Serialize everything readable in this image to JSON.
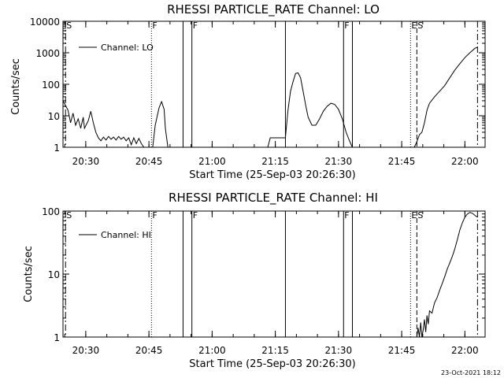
{
  "footer_timestamp": "23-Oct-2021 18:12",
  "colors": {
    "background": "#ffffff",
    "ink": "#000000"
  },
  "chart_data": [
    {
      "type": "line",
      "title": "RHESSI PARTICLE_RATE Channel: LO",
      "xlabel": "Start Time (25-Sep-03 20:26:30)",
      "ylabel": "Counts/sec",
      "yscale": "log",
      "ylim": [
        1,
        10000
      ],
      "xlim": [
        20.41,
        22.08
      ],
      "xticks": [
        {
          "v": 20.5,
          "label": "20:30"
        },
        {
          "v": 20.75,
          "label": "20:45"
        },
        {
          "v": 21.0,
          "label": "21:00"
        },
        {
          "v": 21.25,
          "label": "21:15"
        },
        {
          "v": 21.5,
          "label": "21:30"
        },
        {
          "v": 21.75,
          "label": "21:45"
        },
        {
          "v": 22.0,
          "label": "22:00"
        }
      ],
      "yticks": [
        {
          "v": 1,
          "label": "1"
        },
        {
          "v": 10,
          "label": "10"
        },
        {
          "v": 100,
          "label": "100"
        },
        {
          "v": 1000,
          "label": "1000"
        },
        {
          "v": 10000,
          "label": "10000"
        }
      ],
      "legend": {
        "position": "top-left",
        "entries": [
          "Channel: LO"
        ]
      },
      "markers": [
        {
          "t": 20.42,
          "style": "dashdot",
          "label": "S"
        },
        {
          "t": 20.76,
          "style": "dotted",
          "label": "F"
        },
        {
          "t": 20.885,
          "style": "solid",
          "label": ""
        },
        {
          "t": 20.92,
          "style": "solid",
          "label": "F"
        },
        {
          "t": 21.29,
          "style": "solid",
          "label": ""
        },
        {
          "t": 21.52,
          "style": "solid",
          "label": "F"
        },
        {
          "t": 21.555,
          "style": "solid",
          "label": ""
        },
        {
          "t": 21.785,
          "style": "dotted",
          "label": "E"
        },
        {
          "t": 21.81,
          "style": "dashed",
          "label": "S"
        },
        {
          "t": 22.05,
          "style": "dashdot",
          "label": ""
        }
      ],
      "series": [
        {
          "name": "Channel: LO",
          "segments": [
            [
              [
                20.41,
                30
              ],
              [
                20.43,
                15
              ],
              [
                20.44,
                6
              ],
              [
                20.45,
                12
              ],
              [
                20.46,
                5
              ],
              [
                20.47,
                8
              ],
              [
                20.48,
                4
              ],
              [
                20.49,
                9
              ],
              [
                20.495,
                4
              ],
              [
                20.51,
                7
              ],
              [
                20.52,
                14
              ],
              [
                20.53,
                6
              ],
              [
                20.54,
                3
              ],
              [
                20.55,
                2
              ],
              [
                20.56,
                1.6
              ],
              [
                20.57,
                2.1
              ],
              [
                20.58,
                1.7
              ],
              [
                20.59,
                2.2
              ],
              [
                20.6,
                1.8
              ],
              [
                20.61,
                2.1
              ],
              [
                20.62,
                1.7
              ],
              [
                20.63,
                2.2
              ],
              [
                20.64,
                1.8
              ],
              [
                20.65,
                2.1
              ],
              [
                20.66,
                1.6
              ],
              [
                20.67,
                2.0
              ],
              [
                20.68,
                1.2
              ],
              [
                20.69,
                2.0
              ],
              [
                20.7,
                1.3
              ],
              [
                20.71,
                1.9
              ],
              [
                20.72,
                1.3
              ],
              [
                20.73,
                1.0
              ]
            ],
            [
              [
                20.765,
                1.0
              ],
              [
                20.775,
                5
              ],
              [
                20.79,
                18
              ],
              [
                20.8,
                28
              ],
              [
                20.81,
                16
              ],
              [
                20.815,
                4
              ],
              [
                20.825,
                1.0
              ]
            ],
            [
              [
                21.22,
                1.0
              ],
              [
                21.23,
                2
              ],
              [
                21.25,
                2
              ],
              [
                21.27,
                2
              ],
              [
                21.29,
                2
              ],
              [
                21.3,
                15
              ],
              [
                21.31,
                60
              ],
              [
                21.32,
                120
              ],
              [
                21.33,
                220
              ],
              [
                21.34,
                230
              ],
              [
                21.35,
                160
              ],
              [
                21.36,
                60
              ],
              [
                21.37,
                22
              ],
              [
                21.38,
                9
              ],
              [
                21.395,
                5
              ],
              [
                21.41,
                5
              ],
              [
                21.425,
                8
              ],
              [
                21.44,
                14
              ],
              [
                21.455,
                20
              ],
              [
                21.47,
                25
              ],
              [
                21.485,
                23
              ],
              [
                21.5,
                16
              ],
              [
                21.515,
                8
              ],
              [
                21.53,
                3
              ],
              [
                21.545,
                1.5
              ],
              [
                21.555,
                1.0
              ]
            ],
            [
              [
                21.8,
                1.0
              ],
              [
                21.81,
                1.5
              ],
              [
                21.82,
                2.5
              ],
              [
                21.83,
                3
              ],
              [
                21.84,
                6
              ],
              [
                21.85,
                15
              ],
              [
                21.86,
                25
              ],
              [
                21.88,
                40
              ],
              [
                21.9,
                60
              ],
              [
                21.92,
                90
              ],
              [
                21.94,
                160
              ],
              [
                21.96,
                280
              ],
              [
                21.98,
                450
              ],
              [
                22.0,
                700
              ],
              [
                22.02,
                1000
              ],
              [
                22.04,
                1400
              ],
              [
                22.05,
                1500
              ]
            ]
          ]
        }
      ]
    },
    {
      "type": "line",
      "title": "RHESSI PARTICLE_RATE Channel: HI",
      "xlabel": "Start Time (25-Sep-03 20:26:30)",
      "ylabel": "Counts/sec",
      "yscale": "log",
      "ylim": [
        1,
        100
      ],
      "xlim": [
        20.41,
        22.08
      ],
      "xticks": [
        {
          "v": 20.5,
          "label": "20:30"
        },
        {
          "v": 20.75,
          "label": "20:45"
        },
        {
          "v": 21.0,
          "label": "21:00"
        },
        {
          "v": 21.25,
          "label": "21:15"
        },
        {
          "v": 21.5,
          "label": "21:30"
        },
        {
          "v": 21.75,
          "label": "21:45"
        },
        {
          "v": 22.0,
          "label": "22:00"
        }
      ],
      "yticks": [
        {
          "v": 1,
          "label": "1"
        },
        {
          "v": 10,
          "label": "10"
        },
        {
          "v": 100,
          "label": "100"
        }
      ],
      "legend": {
        "position": "top-left",
        "entries": [
          "Channel: HI"
        ]
      },
      "markers": [
        {
          "t": 20.42,
          "style": "dashdot",
          "label": "S"
        },
        {
          "t": 20.76,
          "style": "dotted",
          "label": "F"
        },
        {
          "t": 20.885,
          "style": "solid",
          "label": ""
        },
        {
          "t": 20.92,
          "style": "solid",
          "label": "F"
        },
        {
          "t": 21.29,
          "style": "solid",
          "label": ""
        },
        {
          "t": 21.52,
          "style": "solid",
          "label": "F"
        },
        {
          "t": 21.555,
          "style": "solid",
          "label": ""
        },
        {
          "t": 21.785,
          "style": "dotted",
          "label": "E"
        },
        {
          "t": 21.81,
          "style": "dashed",
          "label": "S"
        },
        {
          "t": 22.05,
          "style": "dashdot",
          "label": ""
        }
      ],
      "series": [
        {
          "name": "Channel: HI",
          "segments": [
            [
              [
                21.81,
                1.0
              ],
              [
                21.815,
                1.4
              ],
              [
                21.82,
                1.0
              ],
              [
                21.825,
                1.7
              ],
              [
                21.83,
                1.0
              ],
              [
                21.835,
                1.3
              ],
              [
                21.84,
                1.9
              ],
              [
                21.845,
                1.2
              ],
              [
                21.85,
                2.2
              ],
              [
                21.855,
                1.6
              ],
              [
                21.86,
                2.6
              ],
              [
                21.87,
                2.4
              ],
              [
                21.88,
                3.5
              ],
              [
                21.89,
                4.2
              ],
              [
                21.9,
                5.5
              ],
              [
                21.91,
                7
              ],
              [
                21.92,
                9
              ],
              [
                21.93,
                12
              ],
              [
                21.94,
                15
              ],
              [
                21.95,
                19
              ],
              [
                21.96,
                25
              ],
              [
                21.97,
                35
              ],
              [
                21.98,
                50
              ],
              [
                21.99,
                65
              ],
              [
                22.0,
                80
              ],
              [
                22.01,
                90
              ],
              [
                22.02,
                95
              ],
              [
                22.03,
                92
              ],
              [
                22.04,
                85
              ],
              [
                22.05,
                80
              ]
            ]
          ]
        }
      ]
    }
  ]
}
